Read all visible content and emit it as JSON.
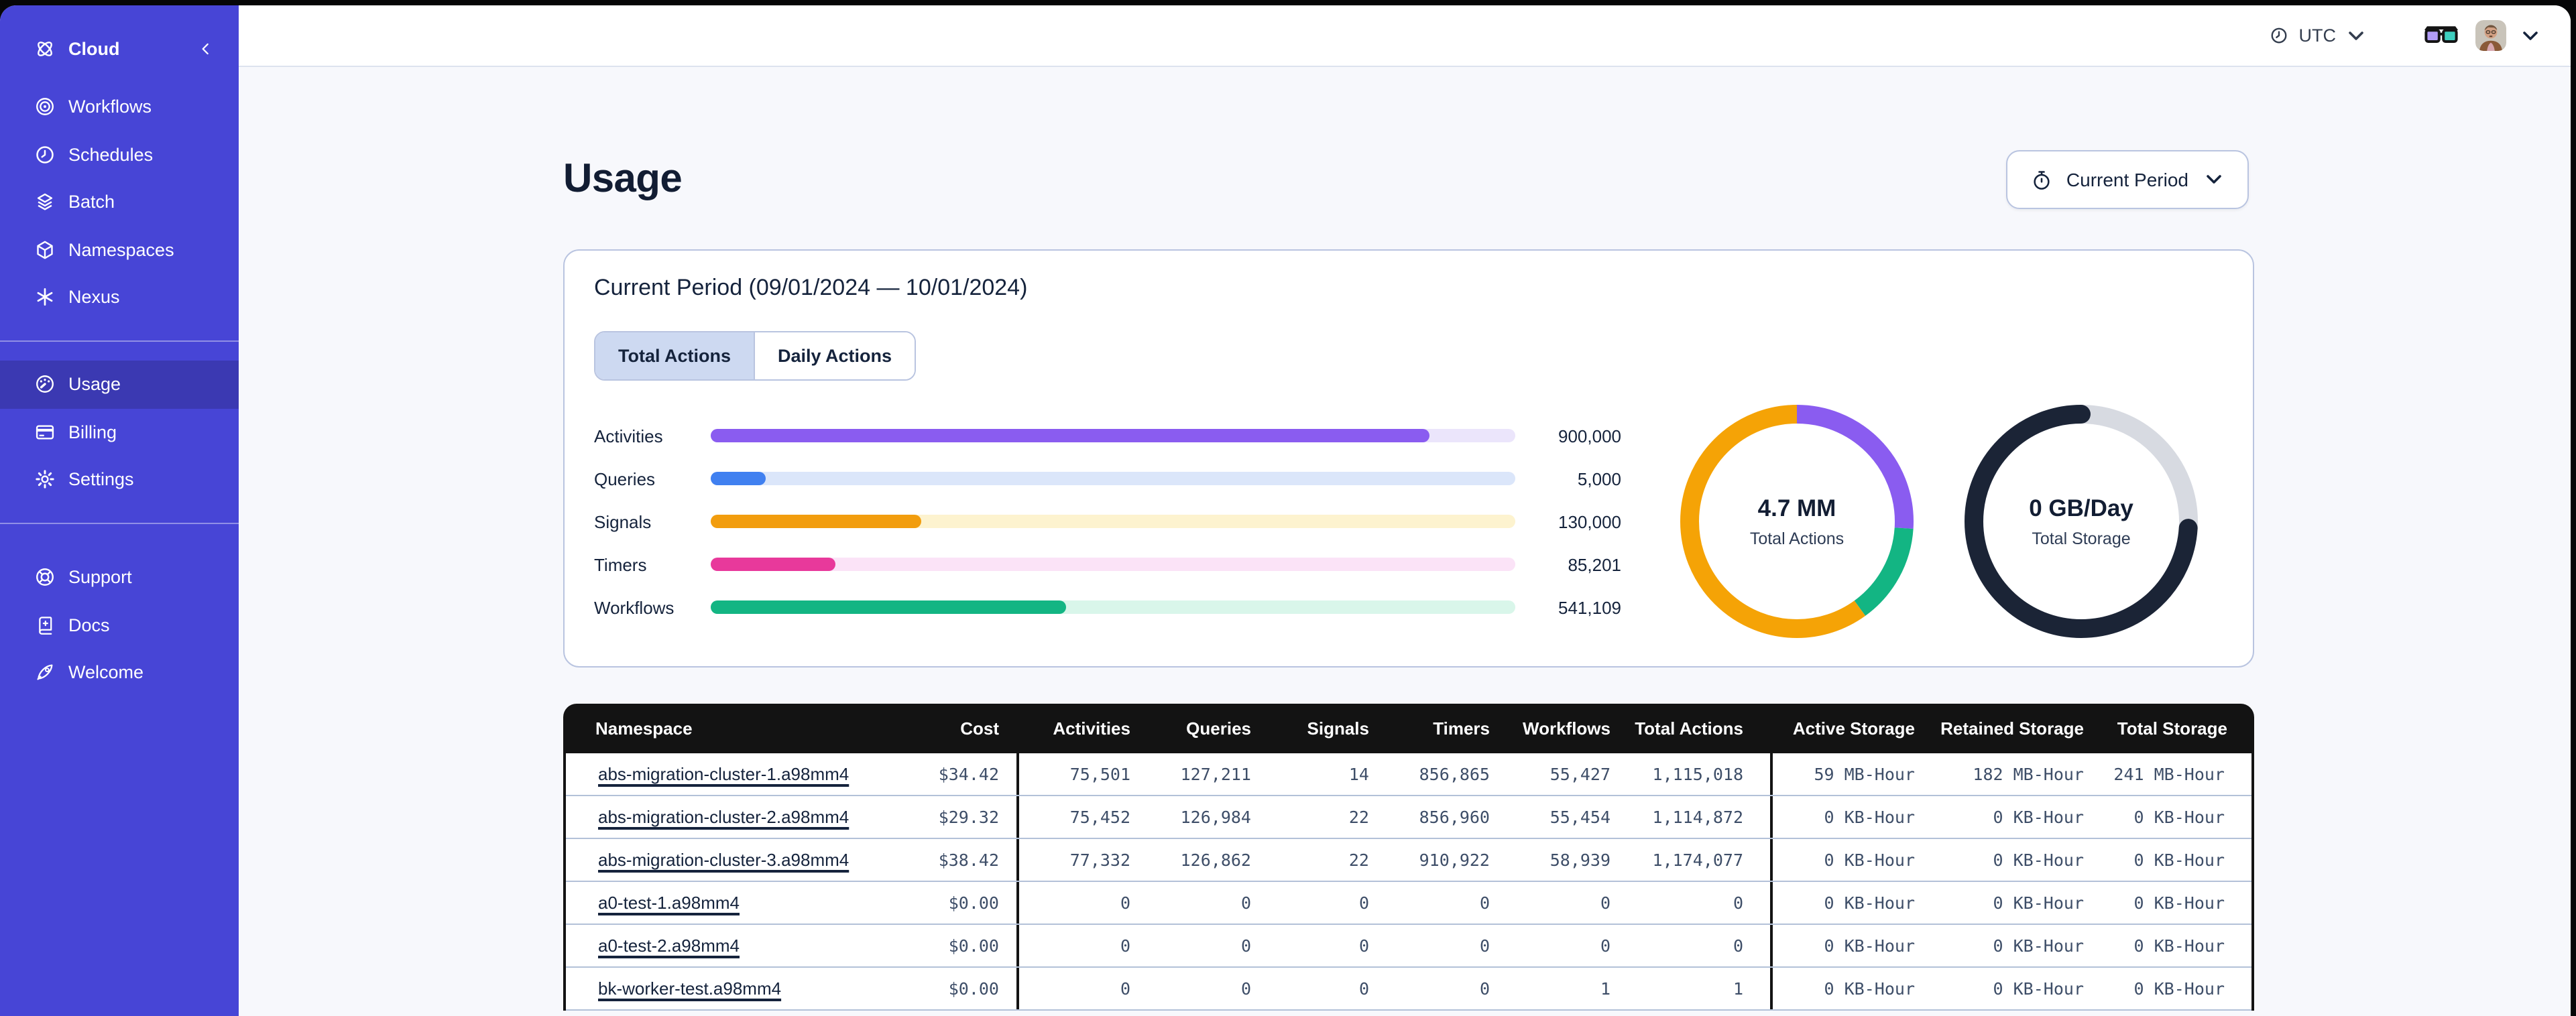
{
  "topbar": {
    "timezone": {
      "label": "UTC",
      "icon": "clock-icon"
    },
    "glasses_icon": "glasses-icon",
    "avatar_icon": "user-avatar"
  },
  "sidebar": {
    "header": {
      "label": "Cloud",
      "icon": "temporal-logo-icon",
      "collapse_icon": "chevron-left-icon"
    },
    "nav_items": [
      {
        "label": "Workflows",
        "icon": "workflows-icon",
        "active": false
      },
      {
        "label": "Schedules",
        "icon": "schedules-icon",
        "active": false
      },
      {
        "label": "Batch",
        "icon": "batch-icon",
        "active": false
      },
      {
        "label": "Namespaces",
        "icon": "namespaces-icon",
        "active": false
      },
      {
        "label": "Nexus",
        "icon": "nexus-icon",
        "active": false
      }
    ],
    "account_items": [
      {
        "label": "Usage",
        "icon": "usage-icon",
        "active": true
      },
      {
        "label": "Billing",
        "icon": "billing-icon",
        "active": false
      },
      {
        "label": "Settings",
        "icon": "settings-icon",
        "active": false
      }
    ],
    "support_items": [
      {
        "label": "Support",
        "icon": "support-icon",
        "active": false
      },
      {
        "label": "Docs",
        "icon": "docs-icon",
        "active": false
      },
      {
        "label": "Welcome",
        "icon": "welcome-icon",
        "active": false
      }
    ],
    "colors": {
      "background": "#4745d6",
      "active_item": "#3b39b2"
    }
  },
  "page": {
    "title": "Usage",
    "period_selector": {
      "label": "Current Period",
      "icon": "stopwatch-icon"
    },
    "card": {
      "title": "Current Period (09/01/2024 — 10/01/2024)",
      "tabs": [
        {
          "label": "Total Actions",
          "active": true
        },
        {
          "label": "Daily Actions",
          "active": false
        }
      ]
    }
  },
  "chart_data": [
    {
      "type": "bar",
      "orientation": "horizontal",
      "categories": [
        "Activities",
        "Queries",
        "Signals",
        "Timers",
        "Workflows"
      ],
      "values": [
        900000,
        5000,
        130000,
        85201,
        541109
      ],
      "value_labels": [
        "900,000",
        "5,000",
        "130,000",
        "85,201",
        "541,109"
      ],
      "fill_percent": [
        89.4,
        6.8,
        26.1,
        15.5,
        44.1
      ],
      "bar_colors": [
        "#8a5cf0",
        "#4080f0",
        "#f29d0e",
        "#e8399b",
        "#13b583"
      ],
      "track_colors": [
        "#ebe5fb",
        "#dbe6fa",
        "#fdf3cf",
        "#fbe3f7",
        "#d9f6ea"
      ],
      "grid": false,
      "legend": false
    },
    {
      "type": "pie",
      "title": "Total Actions donut",
      "center_value": "4.7 MM",
      "center_label": "Total Actions",
      "segments": [
        {
          "name": "activities-purple",
          "fraction": 0.26,
          "color": "#8a5cf0"
        },
        {
          "name": "workflows-green",
          "fraction": 0.14,
          "color": "#13b583"
        },
        {
          "name": "other-orange",
          "fraction": 0.6,
          "color": "#f5a306"
        }
      ]
    },
    {
      "type": "pie",
      "title": "Total Storage donut",
      "center_value": "0 GB/Day",
      "center_label": "Total Storage",
      "segments": [
        {
          "name": "remaining-gray",
          "fraction": 0.26,
          "color": "#d7dae1"
        },
        {
          "name": "storage-dark",
          "fraction": 0.74,
          "color": "#1b2436",
          "cap": "round"
        }
      ]
    }
  ],
  "table": {
    "columns": [
      "Namespace",
      "Cost",
      "Activities",
      "Queries",
      "Signals",
      "Timers",
      "Workflows",
      "Total Actions",
      "Active Storage",
      "Retained Storage",
      "Total Storage"
    ],
    "rows": [
      [
        "abs-migration-cluster-1.a98mm4",
        "$34.42",
        "75,501",
        "127,211",
        "14",
        "856,865",
        "55,427",
        "1,115,018",
        "59 MB-Hour",
        "182 MB-Hour",
        "241 MB-Hour"
      ],
      [
        "abs-migration-cluster-2.a98mm4",
        "$29.32",
        "75,452",
        "126,984",
        "22",
        "856,960",
        "55,454",
        "1,114,872",
        "0 KB-Hour",
        "0 KB-Hour",
        "0 KB-Hour"
      ],
      [
        "abs-migration-cluster-3.a98mm4",
        "$38.42",
        "77,332",
        "126,862",
        "22",
        "910,922",
        "58,939",
        "1,174,077",
        "0 KB-Hour",
        "0 KB-Hour",
        "0 KB-Hour"
      ],
      [
        "a0-test-1.a98mm4",
        "$0.00",
        "0",
        "0",
        "0",
        "0",
        "0",
        "0",
        "0 KB-Hour",
        "0 KB-Hour",
        "0 KB-Hour"
      ],
      [
        "a0-test-2.a98mm4",
        "$0.00",
        "0",
        "0",
        "0",
        "0",
        "0",
        "0",
        "0 KB-Hour",
        "0 KB-Hour",
        "0 KB-Hour"
      ],
      [
        "bk-worker-test.a98mm4",
        "$0.00",
        "0",
        "0",
        "0",
        "0",
        "1",
        "1",
        "0 KB-Hour",
        "0 KB-Hour",
        "0 KB-Hour"
      ]
    ]
  },
  "colors": {
    "header_black": "#131313",
    "row_border": "#b3c1d8",
    "card_border": "#b9c4e0",
    "mono_text": "#3e4e68",
    "dark_text": "#15233c",
    "page_bg": "#f7f8fc"
  }
}
